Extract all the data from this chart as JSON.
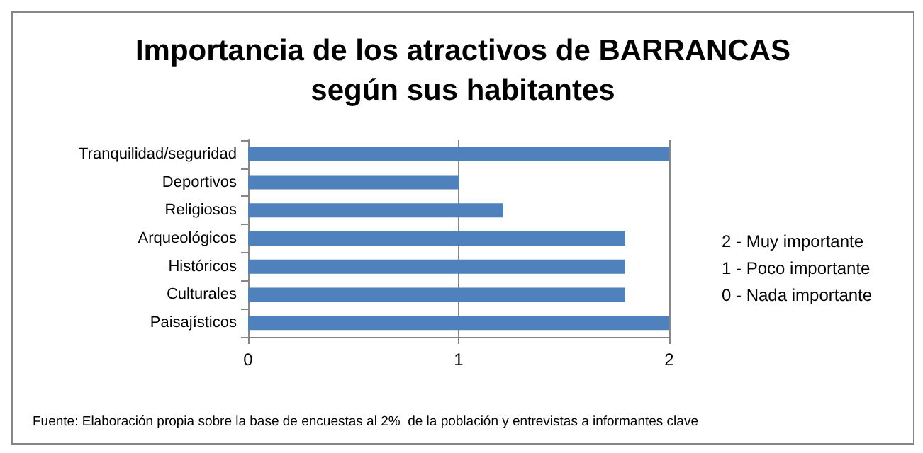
{
  "chart_data": {
    "type": "bar",
    "orientation": "horizontal",
    "title": "Importancia de los atractivos de BARRANCAS\nsegún sus habitantes",
    "categories": [
      "Tranquilidad/seguridad",
      "Deportivos",
      "Religiosos",
      "Arqueológicos",
      "Históricos",
      "Culturales",
      "Paisajísticos"
    ],
    "values": [
      2,
      1,
      1.21,
      1.79,
      1.79,
      1.79,
      2
    ],
    "color": "#4f81bd",
    "xlim": [
      0,
      2
    ],
    "xticks": [
      0,
      1,
      2
    ],
    "grid": "x",
    "annotations": [
      "2 - Muy importante\n1 - Poco importante\n0 - Nada importante",
      "Fuente: Elaboración propia sobre la base de encuestas al 2%  de la población y entrevistas a informantes clave"
    ]
  }
}
